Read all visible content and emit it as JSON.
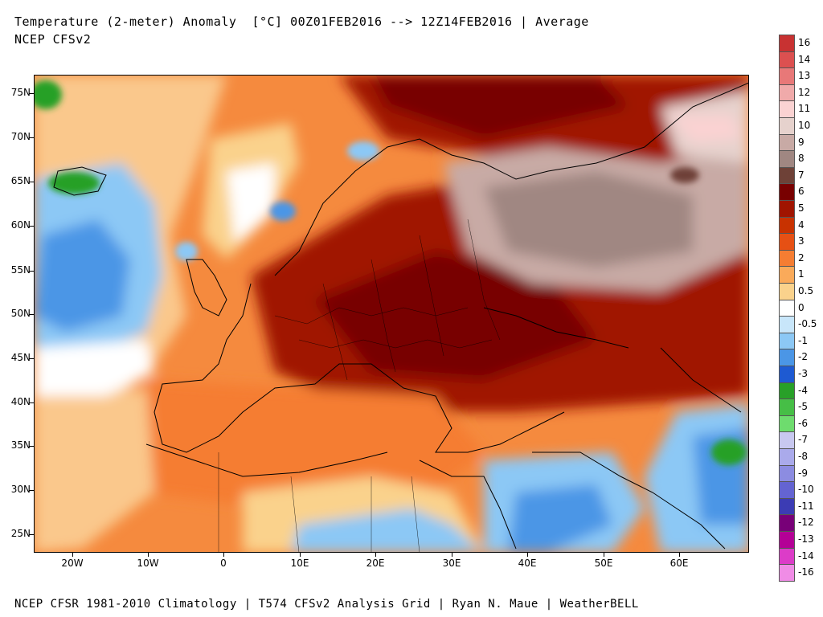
{
  "header": {
    "title": "Temperature (2-meter) Anomaly  [°C] 00Z01FEB2016 --> 12Z14FEB2016 | Average",
    "model": "NCEP CFSv2"
  },
  "footer": {
    "credits": "NCEP CFSR 1981-2010 Climatology | T574 CFSv2 Analysis Grid | Ryan N. Maue | WeatherBELL"
  },
  "map": {
    "lat_labels": [
      "75N",
      "70N",
      "65N",
      "60N",
      "55N",
      "50N",
      "45N",
      "40N",
      "35N",
      "30N",
      "25N"
    ],
    "lon_labels": [
      "20W",
      "10W",
      "0",
      "10E",
      "20E",
      "30E",
      "40E",
      "50E",
      "60E"
    ]
  },
  "legend": {
    "labels": [
      "16",
      "14",
      "13",
      "12",
      "11",
      "10",
      "9",
      "8",
      "7",
      "6",
      "5",
      "4",
      "3",
      "2",
      "1",
      "0.5",
      "0",
      "-0.5",
      "-1",
      "-2",
      "-3",
      "-4",
      "-5",
      "-6",
      "-7",
      "-8",
      "-9",
      "-10",
      "-11",
      "-12",
      "-13",
      "-14",
      "-16"
    ],
    "colors": [
      "#c83232",
      "#dc5050",
      "#e87878",
      "#f0aaaa",
      "#fad2d2",
      "#e6d2cd",
      "#c8aaa5",
      "#a08782",
      "#6e4137",
      "#780000",
      "#a01400",
      "#c83200",
      "#e65014",
      "#f57d32",
      "#faaa5a",
      "#fad28c",
      "#ffffff",
      "#c8e6fa",
      "#8cc8f5",
      "#4b96e6",
      "#1e5ad2",
      "#28a028",
      "#46be46",
      "#6edc6e",
      "#c8c8f0",
      "#aaaaeb",
      "#8c8ce1",
      "#6464d2",
      "#3c3cb4",
      "#780078",
      "#b40096",
      "#dc3cc8",
      "#f08ce6"
    ]
  }
}
